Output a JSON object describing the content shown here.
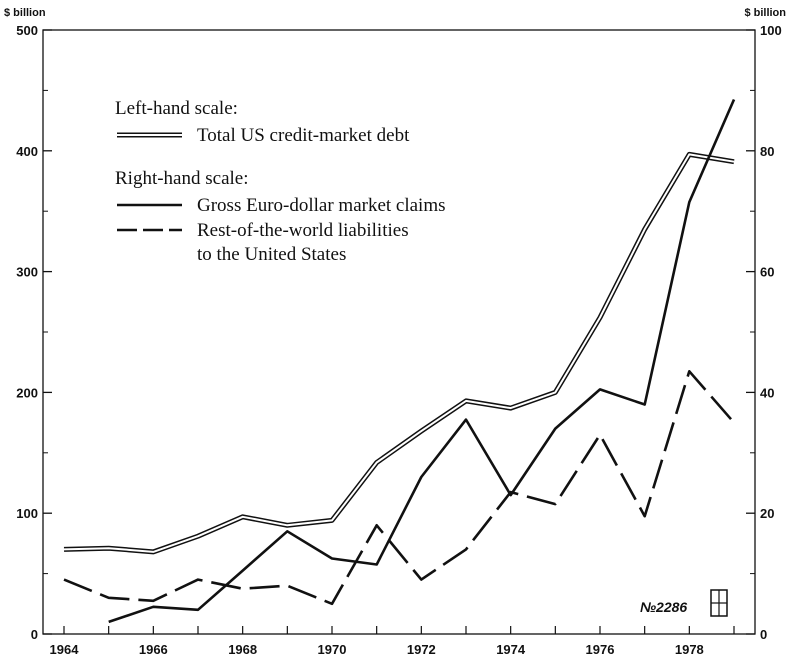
{
  "chart_data": {
    "type": "line",
    "left_axis_unit": "$ billion",
    "right_axis_unit": "$ billion",
    "left_ylim": [
      0,
      500
    ],
    "right_ylim": [
      0,
      100
    ],
    "left_ticks": [
      "0",
      "100",
      "200",
      "300",
      "400",
      "500"
    ],
    "right_ticks": [
      "0",
      "20",
      "40",
      "60",
      "80",
      "100"
    ],
    "x_ticks": [
      "1964",
      "1966",
      "1968",
      "1970",
      "1972",
      "1974",
      "1976",
      "1978"
    ],
    "xlim": [
      1964,
      1979
    ],
    "legend": {
      "left_heading": "Left-hand scale:",
      "right_heading": "Right-hand scale:",
      "placement": "top-left"
    },
    "series": [
      {
        "name": "Total US credit-market debt",
        "axis": "left",
        "style": "double",
        "x": [
          1964,
          1965,
          1966,
          1967,
          1968,
          1969,
          1970,
          1971,
          1972,
          1973,
          1974,
          1975,
          1976,
          1977,
          1978,
          1979
        ],
        "values": [
          70,
          71,
          68,
          81,
          97,
          90,
          94,
          142,
          168,
          193,
          187,
          200,
          262,
          335,
          397,
          391
        ]
      },
      {
        "name": "Gross Euro-dollar market claims",
        "axis": "right",
        "style": "solid",
        "x": [
          1965,
          1966,
          1967,
          1968,
          1969,
          1970,
          1971,
          1972,
          1973,
          1974,
          1975,
          1976,
          1977,
          1978,
          1979
        ],
        "values": [
          2,
          4.5,
          4,
          10.5,
          17,
          12.5,
          11.5,
          26,
          35.5,
          23,
          34,
          40.5,
          38,
          71.5,
          88.5
        ]
      },
      {
        "name": "Rest-of-the-world liabilities to the United States",
        "name_lines": [
          "Rest-of-the-world liabilities",
          "to the United States"
        ],
        "axis": "right",
        "style": "dashed",
        "x": [
          1964,
          1965,
          1966,
          1967,
          1968,
          1969,
          1970,
          1971,
          1972,
          1973,
          1974,
          1975,
          1976,
          1977,
          1978,
          1979
        ],
        "values": [
          9,
          6,
          5.5,
          9,
          7.5,
          8,
          5,
          18,
          9,
          14,
          23.5,
          21.5,
          33,
          19.5,
          43.5,
          35
        ]
      }
    ],
    "annotation": "№2286",
    "grid": false
  }
}
